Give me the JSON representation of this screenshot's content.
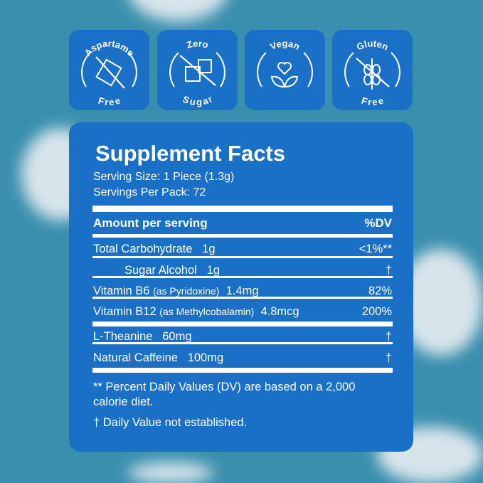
{
  "colors": {
    "panel": "#1a70c6",
    "background": "#3b8fae"
  },
  "badges": [
    {
      "top": "Aspartame",
      "bottom": "Free",
      "icon": "crossed-candy-icon"
    },
    {
      "top": "Zero",
      "bottom": "Sugar",
      "icon": "crossed-sugar-cubes-icon"
    },
    {
      "top": "Vegan",
      "bottom": "",
      "icon": "heart-leaves-icon"
    },
    {
      "top": "Gluten",
      "bottom": "Free",
      "icon": "crossed-wheat-icon"
    }
  ],
  "facts": {
    "title": "Supplement Facts",
    "serving_size": "Serving Size: 1 Piece (1.3g)",
    "servings_per_pack": "Servings Per Pack: 72",
    "header": {
      "amount": "Amount per serving",
      "dv": "%DV"
    },
    "rows": [
      {
        "name": "Total Carbohydrate",
        "note": "",
        "amount": "1g",
        "dv": "<1%**"
      },
      {
        "name": "Sugar Alcohol",
        "note": "",
        "amount": "1g",
        "dv": "†"
      },
      {
        "name": "Vitamin B6",
        "note": "(as Pyridoxine)",
        "amount": "1.4mg",
        "dv": "82%"
      },
      {
        "name": "Vitamin B12",
        "note": "(as Methylcobalamin)",
        "amount": "4.8mcg",
        "dv": "200%"
      },
      {
        "name": "L-Theanine",
        "note": "",
        "amount": "60mg",
        "dv": "†"
      },
      {
        "name": "Natural Caffeine",
        "note": "",
        "amount": "100mg",
        "dv": "†"
      }
    ],
    "footnote1": "** Percent Daily Values (DV) are based on a 2,000 calorie diet.",
    "footnote2": "† Daily Value not established."
  }
}
